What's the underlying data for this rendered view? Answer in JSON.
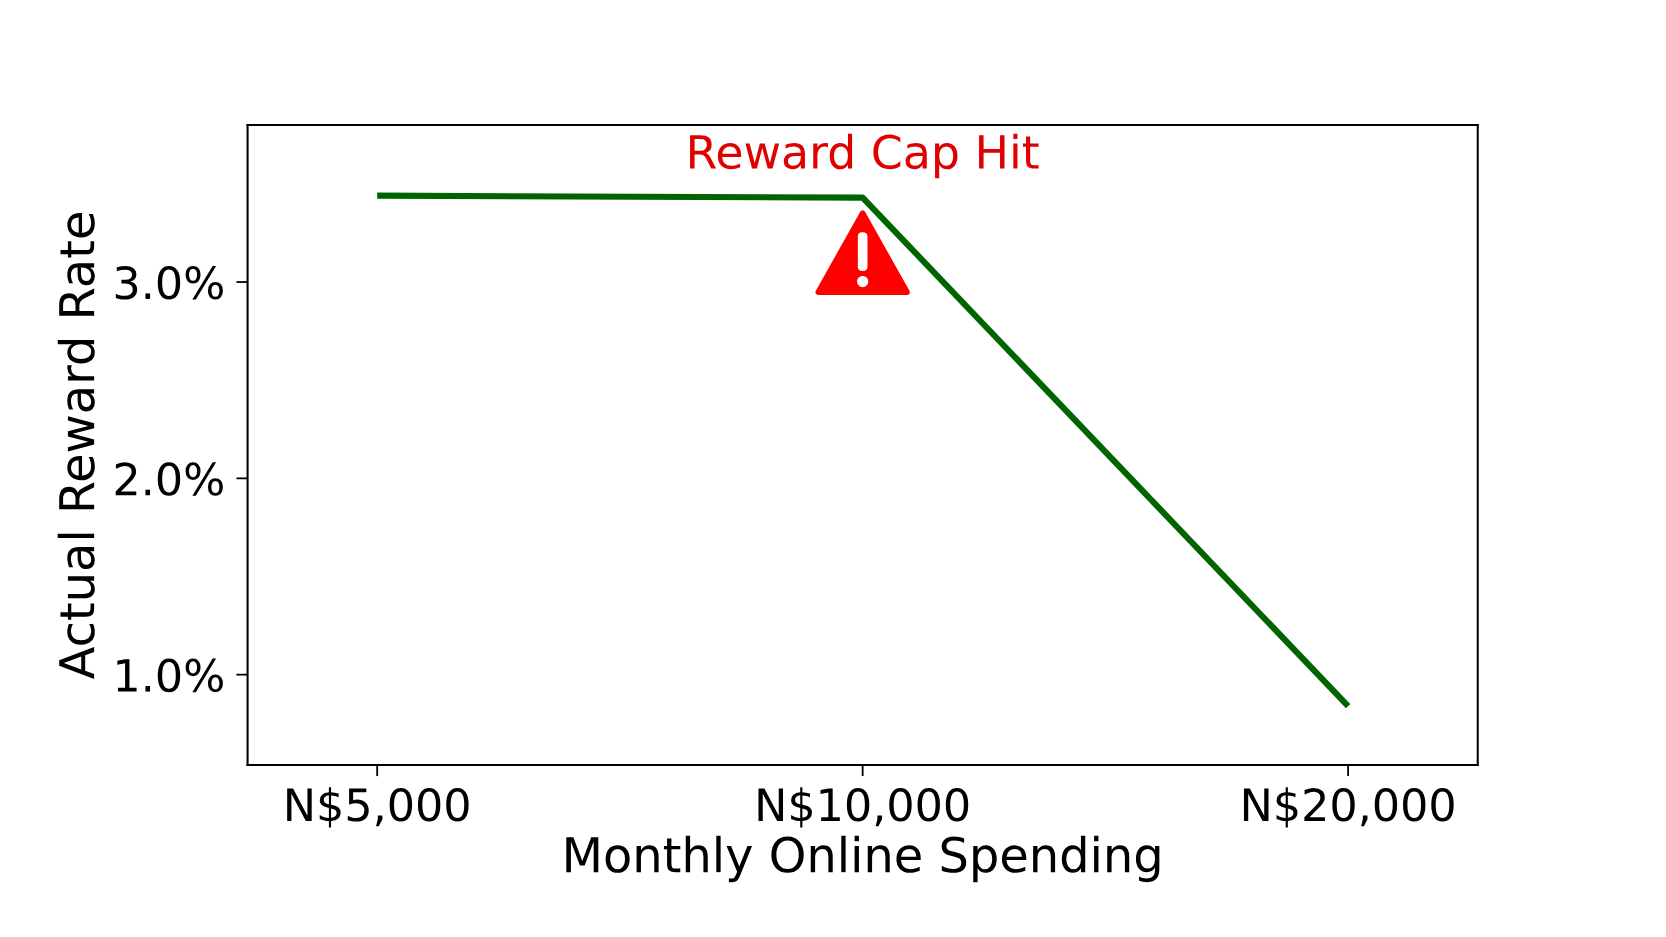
{
  "chart_data": {
    "type": "line",
    "xlabel": "Monthly Online Spending",
    "ylabel": "Actual Reward Rate",
    "categories": [
      "N$5,000",
      "N$10,000",
      "N$20,000"
    ],
    "series": [
      {
        "color": "#006400",
        "values": [
          3.44,
          3.43,
          0.84
        ]
      }
    ],
    "ylim": [
      0.54,
      3.8
    ],
    "yticks": [
      {
        "value": 1,
        "label": "1.0%"
      },
      {
        "value": 2,
        "label": "2.0%"
      },
      {
        "value": 3,
        "label": "3.0%"
      }
    ],
    "annotations": [
      {
        "text": "Reward Cap Hit",
        "x": "N$10,000",
        "y": 3.43
      }
    ],
    "line_style": "solid"
  }
}
